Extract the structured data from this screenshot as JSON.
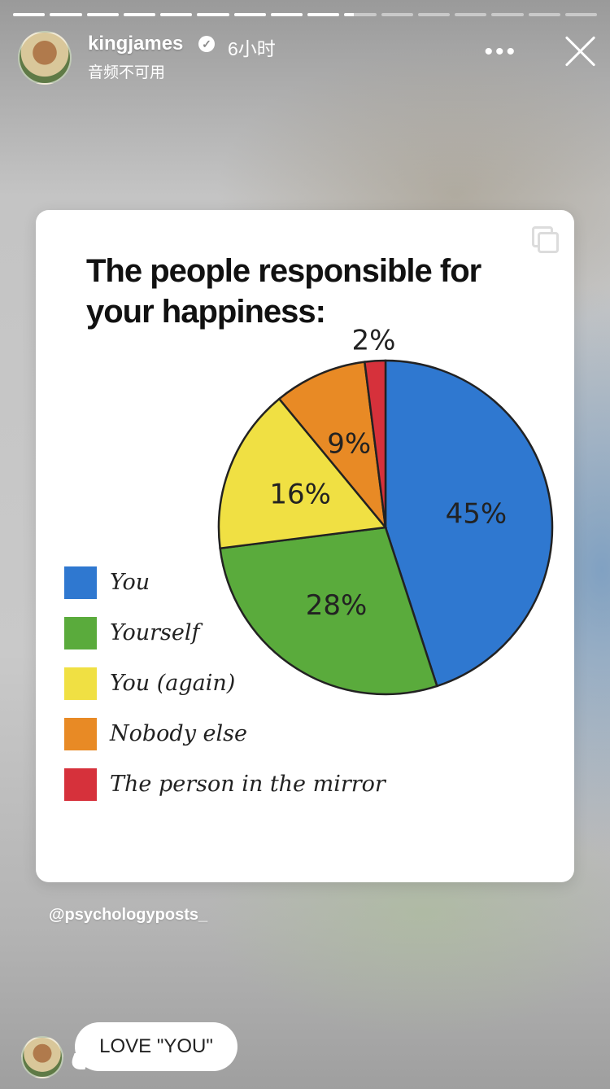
{
  "story": {
    "username": "kingjames",
    "time_ago": "6小时",
    "audio_status": "音频不可用",
    "segments_total": 16,
    "segments_completed": 9,
    "current_segment_progress": 0.3
  },
  "card": {
    "title_line1": "The people responsible for",
    "title_line2": "your happiness:"
  },
  "chart_data": {
    "type": "pie",
    "title": "The people responsible for your happiness:",
    "slices": [
      {
        "label": "You",
        "value": 45,
        "display": "45%",
        "color": "#2f78d0"
      },
      {
        "label": "Yourself",
        "value": 28,
        "display": "28%",
        "color": "#5aab3c"
      },
      {
        "label": "You (again)",
        "value": 16,
        "display": "16%",
        "color": "#f0e043"
      },
      {
        "label": "Nobody else",
        "value": 9,
        "display": "9%",
        "color": "#e88a25"
      },
      {
        "label": "The person in the mirror",
        "value": 2,
        "display": "2%",
        "color": "#d6313b"
      }
    ],
    "legend_position": "bottom-left"
  },
  "credit": "@psychologyposts_",
  "reply": {
    "text": "LOVE \"YOU\""
  },
  "icons": {
    "verified": "verified-badge-icon",
    "more": "more-options-icon",
    "close": "close-icon",
    "copy": "copy-icon"
  }
}
